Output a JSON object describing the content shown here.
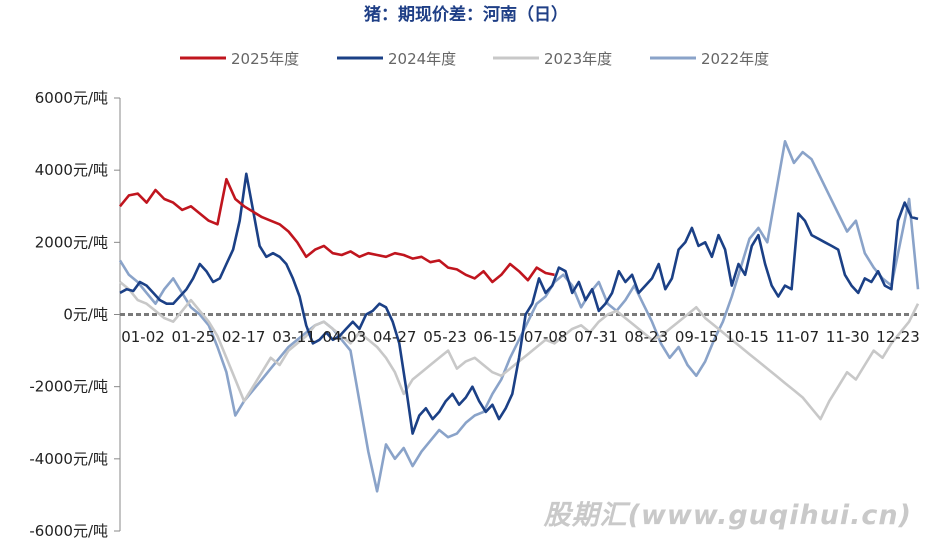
{
  "chart_data": {
    "type": "line",
    "title": "猪：期现价差：河南（日）",
    "y_unit": "元/吨",
    "ylim": [
      -6000,
      6000
    ],
    "y_ticks": [
      6000,
      4000,
      2000,
      0,
      -2000,
      -4000,
      -6000
    ],
    "y_tick_labels": [
      "6000元/吨",
      "4000元/吨",
      "2000元/吨",
      "0元/吨",
      "-2000元/吨",
      "-4000元/吨",
      "-6000元/吨"
    ],
    "x_tick_labels": [
      "01-02",
      "01-25",
      "02-17",
      "03-11",
      "04-03",
      "04-27",
      "05-23",
      "06-15",
      "07-08",
      "07-31",
      "08-23",
      "09-15",
      "10-15",
      "11-07",
      "11-30",
      "12-23"
    ],
    "x_range_days": [
      0,
      360
    ],
    "grid": false,
    "zero_line": "dashed",
    "legend_position": "top",
    "watermark": "股期汇(www.guqihui.cn)",
    "series": [
      {
        "name": "2025年度",
        "color": "#c0151e",
        "x": [
          0,
          4,
          8,
          12,
          16,
          20,
          24,
          28,
          32,
          36,
          40,
          44,
          48,
          52,
          56,
          60,
          64,
          68,
          72,
          76,
          80,
          84,
          88,
          92,
          96,
          100,
          104,
          108,
          112,
          116,
          120,
          124,
          128,
          132,
          136,
          140,
          144,
          148,
          152,
          156,
          160,
          164,
          168,
          172,
          176,
          180,
          184,
          188,
          192,
          196
        ],
        "y": [
          3000,
          3300,
          3350,
          3100,
          3450,
          3200,
          3100,
          2900,
          3000,
          2800,
          2600,
          2500,
          3750,
          3200,
          3000,
          2850,
          2700,
          2600,
          2500,
          2300,
          2000,
          1600,
          1800,
          1900,
          1700,
          1650,
          1750,
          1600,
          1700,
          1650,
          1600,
          1700,
          1650,
          1550,
          1600,
          1450,
          1500,
          1300,
          1250,
          1100,
          1000,
          1200,
          900,
          1100,
          1400,
          1200,
          950,
          1300,
          1150,
          1100
        ]
      },
      {
        "name": "2024年度",
        "color": "#1b4086",
        "x": [
          0,
          3,
          6,
          9,
          12,
          15,
          18,
          21,
          24,
          27,
          30,
          33,
          36,
          39,
          42,
          45,
          48,
          51,
          54,
          57,
          60,
          63,
          66,
          69,
          72,
          75,
          78,
          81,
          84,
          87,
          90,
          93,
          96,
          99,
          102,
          105,
          108,
          111,
          114,
          117,
          120,
          123,
          126,
          129,
          132,
          135,
          138,
          141,
          144,
          147,
          150,
          153,
          156,
          159,
          162,
          165,
          168,
          171,
          174,
          177,
          180,
          183,
          186,
          189,
          192,
          195,
          198,
          201,
          204,
          207,
          210,
          213,
          216,
          219,
          222,
          225,
          228,
          231,
          234,
          237,
          240,
          243,
          246,
          249,
          252,
          255,
          258,
          261,
          264,
          267,
          270,
          273,
          276,
          279,
          282,
          285,
          288,
          291,
          294,
          297,
          300,
          303,
          306,
          309,
          312,
          315,
          318,
          321,
          324,
          327,
          330,
          333,
          336,
          339,
          342,
          345,
          348,
          351,
          354,
          357,
          360
        ],
        "y": [
          600,
          700,
          650,
          900,
          800,
          600,
          400,
          300,
          300,
          500,
          700,
          1000,
          1400,
          1200,
          900,
          1000,
          1400,
          1800,
          2600,
          3900,
          2900,
          1900,
          1600,
          1700,
          1600,
          1400,
          1000,
          500,
          -300,
          -800,
          -700,
          -500,
          -700,
          -600,
          -400,
          -200,
          -400,
          0,
          100,
          300,
          200,
          -200,
          -800,
          -2000,
          -3300,
          -2800,
          -2600,
          -2900,
          -2700,
          -2400,
          -2200,
          -2500,
          -2300,
          -2000,
          -2400,
          -2700,
          -2500,
          -2900,
          -2600,
          -2200,
          -1200,
          0,
          300,
          1000,
          600,
          800,
          1300,
          1200,
          600,
          900,
          400,
          700,
          100,
          300,
          600,
          1200,
          900,
          1100,
          600,
          800,
          1000,
          1400,
          700,
          1000,
          1800,
          2000,
          2400,
          1900,
          2000,
          1600,
          2200,
          1800,
          800,
          1400,
          1100,
          1900,
          2200,
          1400,
          800,
          500,
          800,
          700,
          2800,
          2600,
          2200,
          2100,
          2000,
          1900,
          1800,
          1100,
          800,
          600,
          1000,
          900,
          1200,
          800,
          700,
          2600,
          3100,
          2700,
          2650
        ],
        "y_note": "end"
      },
      {
        "name": "2023年度",
        "color": "#c8c8c8",
        "x": [
          0,
          4,
          8,
          12,
          16,
          20,
          24,
          28,
          32,
          36,
          40,
          44,
          48,
          52,
          56,
          60,
          64,
          68,
          72,
          76,
          80,
          84,
          88,
          92,
          96,
          100,
          104,
          108,
          112,
          116,
          120,
          124,
          128,
          132,
          136,
          140,
          144,
          148,
          152,
          156,
          160,
          164,
          168,
          172,
          176,
          180,
          184,
          188,
          192,
          196,
          200,
          204,
          208,
          212,
          216,
          220,
          224,
          228,
          232,
          236,
          240,
          244,
          248,
          252,
          256,
          260,
          264,
          268,
          272,
          276,
          280,
          284,
          288,
          292,
          296,
          300,
          304,
          308,
          312,
          316,
          320,
          324,
          328,
          332,
          336,
          340,
          344,
          348,
          352,
          356,
          360
        ],
        "y": [
          900,
          700,
          400,
          300,
          100,
          -100,
          -200,
          100,
          400,
          100,
          -200,
          -600,
          -1200,
          -1800,
          -2400,
          -2000,
          -1600,
          -1200,
          -1400,
          -1000,
          -800,
          -600,
          -300,
          -200,
          -400,
          -600,
          -800,
          -500,
          -700,
          -900,
          -1200,
          -1600,
          -2200,
          -1800,
          -1600,
          -1400,
          -1200,
          -1000,
          -1500,
          -1300,
          -1200,
          -1400,
          -1600,
          -1700,
          -1500,
          -1300,
          -1100,
          -900,
          -700,
          -800,
          -600,
          -400,
          -300,
          -500,
          -200,
          0,
          100,
          -100,
          -300,
          -500,
          -700,
          -600,
          -400,
          -200,
          0,
          200,
          -100,
          -300,
          -500,
          -700,
          -900,
          -1100,
          -1300,
          -1500,
          -1700,
          -1900,
          -2100,
          -2300,
          -2600,
          -2900,
          -2400,
          -2000,
          -1600,
          -1800,
          -1400,
          -1000,
          -1200,
          -800,
          -500,
          -200,
          300
        ]
      },
      {
        "name": "2022年度",
        "color": "#8aa3c9",
        "x": [
          0,
          4,
          8,
          12,
          16,
          20,
          24,
          28,
          32,
          36,
          40,
          44,
          48,
          52,
          56,
          60,
          64,
          68,
          72,
          76,
          80,
          84,
          88,
          92,
          96,
          100,
          104,
          108,
          112,
          116,
          120,
          124,
          128,
          132,
          136,
          140,
          144,
          148,
          152,
          156,
          160,
          164,
          168,
          172,
          176,
          180,
          184,
          188,
          192,
          196,
          200,
          204,
          208,
          212,
          216,
          220,
          224,
          228,
          232,
          236,
          240,
          244,
          248,
          252,
          256,
          260,
          264,
          268,
          272,
          276,
          280,
          284,
          288,
          292,
          296,
          300,
          304,
          308,
          312,
          316,
          320,
          324,
          328,
          332,
          336,
          340,
          344,
          348,
          352,
          356,
          360
        ],
        "y": [
          1500,
          1100,
          900,
          600,
          300,
          700,
          1000,
          600,
          200,
          0,
          -300,
          -900,
          -1600,
          -2800,
          -2400,
          -2100,
          -1800,
          -1500,
          -1200,
          -900,
          -700,
          -500,
          -300,
          -200,
          -400,
          -700,
          -1000,
          -2400,
          -3800,
          -4900,
          -3600,
          -4000,
          -3700,
          -4200,
          -3800,
          -3500,
          -3200,
          -3400,
          -3300,
          -3000,
          -2800,
          -2700,
          -2200,
          -1800,
          -1200,
          -700,
          -200,
          300,
          500,
          900,
          1100,
          800,
          200,
          600,
          900,
          300,
          100,
          400,
          800,
          300,
          -200,
          -800,
          -1200,
          -900,
          -1400,
          -1700,
          -1300,
          -700,
          -200,
          500,
          1300,
          2100,
          2400,
          2000,
          3400,
          4800,
          4200,
          4500,
          4300,
          3800,
          3300,
          2800,
          2300,
          2600,
          1700,
          1300,
          1000,
          800,
          2000,
          3200,
          700
        ]
      }
    ]
  }
}
